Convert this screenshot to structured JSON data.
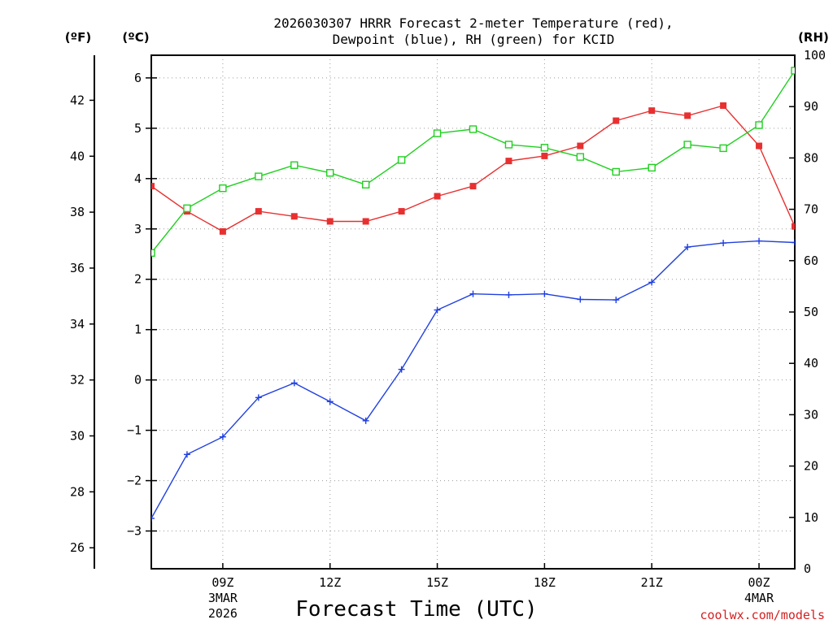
{
  "chart_data": {
    "type": "line",
    "title_lines": [
      "2026030307 HRRR Forecast 2-meter Temperature (red),",
      "Dewpoint (blue), RH (green) for KCID"
    ],
    "xlabel": "Forecast Time (UTC)",
    "x_hours": [
      7,
      8,
      9,
      10,
      11,
      12,
      13,
      14,
      15,
      16,
      17,
      18,
      19,
      20,
      21,
      22,
      23,
      24,
      25
    ],
    "x_range": [
      7,
      25
    ],
    "x_ticks": [
      {
        "hour": 9,
        "label": "09Z",
        "sub": [
          "3MAR",
          "2026"
        ]
      },
      {
        "hour": 12,
        "label": "12Z",
        "sub": []
      },
      {
        "hour": 15,
        "label": "15Z",
        "sub": []
      },
      {
        "hour": 18,
        "label": "18Z",
        "sub": []
      },
      {
        "hour": 21,
        "label": "21Z",
        "sub": []
      },
      {
        "hour": 24,
        "label": "00Z",
        "sub": [
          "4MAR"
        ]
      }
    ],
    "left_axis_c": {
      "label": "(ºC)",
      "range": [
        -3.75,
        6.45
      ],
      "ticks": [
        6,
        5,
        4,
        3,
        2,
        1,
        0,
        -1,
        -2,
        -3
      ]
    },
    "left_axis_f": {
      "label": "(ºF)",
      "ticks": [
        42,
        40,
        38,
        36,
        34,
        32,
        30,
        28,
        26
      ]
    },
    "right_axis_rh": {
      "label": "(RH)",
      "range": [
        0,
        100
      ],
      "ticks": [
        100,
        90,
        80,
        70,
        60,
        50,
        40,
        30,
        20,
        10,
        0
      ]
    },
    "series": [
      {
        "name": "Temperature (°C)",
        "axis": "c",
        "color": "#e83030",
        "marker": "filled-square",
        "values": [
          3.85,
          3.35,
          2.95,
          3.35,
          3.25,
          3.15,
          3.15,
          3.35,
          3.65,
          3.85,
          4.35,
          4.45,
          4.65,
          5.15,
          5.35,
          5.25,
          5.45,
          4.65,
          3.05
        ]
      },
      {
        "name": "Dewpoint (°C)",
        "axis": "c",
        "color": "#2040e0",
        "marker": "plus",
        "values": [
          -2.75,
          -1.48,
          -1.13,
          -0.35,
          -0.06,
          -0.43,
          -0.81,
          0.21,
          1.39,
          1.71,
          1.69,
          1.71,
          1.6,
          1.59,
          1.94,
          2.64,
          2.72,
          2.76,
          2.73
        ]
      },
      {
        "name": "RH (%)",
        "axis": "rh",
        "color": "#20d020",
        "marker": "open-square",
        "values": [
          61.5,
          70.2,
          74.1,
          76.4,
          78.6,
          77.1,
          74.8,
          79.6,
          84.8,
          85.6,
          82.6,
          82.0,
          80.2,
          77.3,
          78.1,
          82.6,
          81.9,
          86.4,
          97.0
        ]
      }
    ]
  },
  "credit": "coolwx.com/models"
}
